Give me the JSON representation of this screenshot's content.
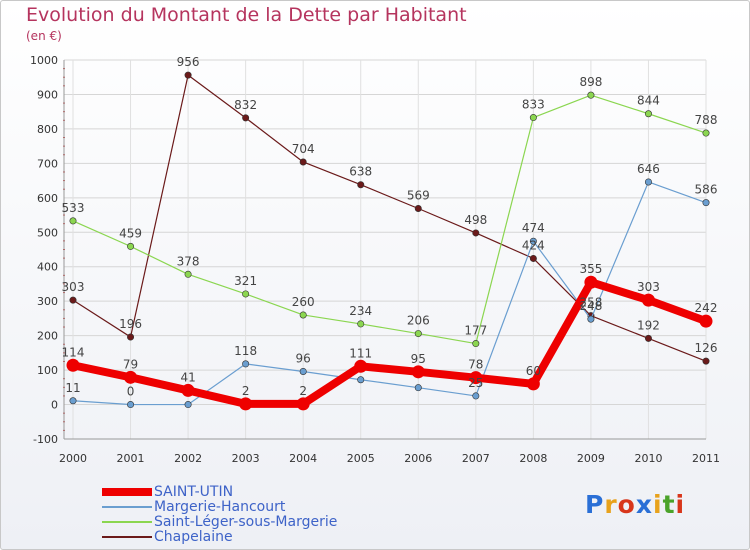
{
  "title": "Evolution du Montant de la Dette par Habitant",
  "unit": "(en €)",
  "logo": {
    "letters": [
      "P",
      "r",
      "o",
      "x",
      "i",
      "t",
      "i"
    ],
    "colors": [
      "#2a6fd6",
      "#e8a21c",
      "#d8361b",
      "#2a6fd6",
      "#e8a21c",
      "#4ba32a",
      "#d8361b"
    ]
  },
  "chart_data": {
    "type": "line",
    "x": [
      "2000",
      "2001",
      "2002",
      "2003",
      "2004",
      "2005",
      "2006",
      "2007",
      "2008",
      "2009",
      "2010",
      "2011"
    ],
    "ylim": [
      -100,
      1000
    ],
    "yticks": [
      "-100",
      "0",
      "100",
      "200",
      "300",
      "400",
      "500",
      "600",
      "700",
      "800",
      "900",
      "1000"
    ],
    "grid": true,
    "legend_position": "bottom-left",
    "series": [
      {
        "name": "Chapelaine",
        "color": "#6b1a1a",
        "width": 1.2,
        "values": [
          303,
          196,
          956,
          832,
          704,
          638,
          569,
          498,
          424,
          258,
          192,
          126
        ],
        "labels": [
          "303",
          "196",
          "956",
          "832",
          "704",
          "638",
          "569",
          "498",
          "424",
          "258",
          "192",
          "126"
        ]
      },
      {
        "name": "Saint-Léger-sous-Margerie",
        "color": "#8bd650",
        "width": 1.2,
        "values": [
          533,
          459,
          378,
          321,
          260,
          234,
          206,
          177,
          833,
          898,
          844,
          788
        ],
        "labels": [
          "533",
          "459",
          "378",
          "321",
          "260",
          "234",
          "206",
          "177",
          "833",
          "898",
          "844",
          "788"
        ]
      },
      {
        "name": "Margerie-Hancourt",
        "color": "#6a9ed0",
        "width": 1.2,
        "values": [
          11,
          0,
          0,
          118,
          96,
          72,
          49,
          25,
          474,
          248,
          646,
          586
        ],
        "labels": [
          "11",
          "0",
          "",
          "118",
          "96",
          "",
          "",
          "25",
          "474",
          "248",
          "646",
          "586"
        ]
      },
      {
        "name": "SAINT-UTIN",
        "color": "#ee0000",
        "width": 8,
        "values": [
          114,
          79,
          41,
          2,
          2,
          111,
          95,
          78,
          60,
          355,
          303,
          242
        ],
        "labels": [
          "114",
          "79",
          "41",
          "2",
          "2",
          "111",
          "95",
          "78",
          "60",
          "355",
          "303",
          "242"
        ]
      }
    ],
    "legend": [
      "SAINT-UTIN",
      "Margerie-Hancourt",
      "Saint-Léger-sous-Margerie",
      "Chapelaine"
    ]
  }
}
